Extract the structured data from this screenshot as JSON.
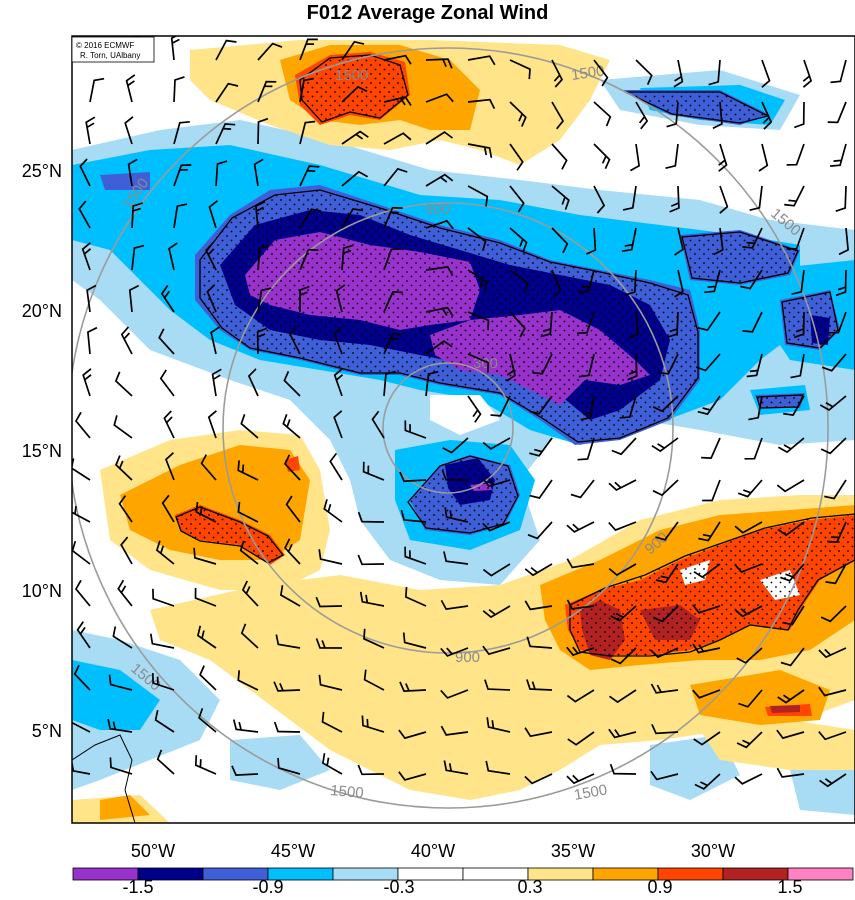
{
  "title": "F012 Average Zonal Wind",
  "credit": [
    "© 2016 ECMWF",
    "R. Torn, UAlbany"
  ],
  "map": {
    "lat_labels": [
      "25°N",
      "20°N",
      "15°N",
      "10°N",
      "5°N"
    ],
    "lon_labels": [
      "50°W",
      "45°W",
      "40°W",
      "35°W",
      "30°W"
    ],
    "range_ring_labels": [
      "300",
      "900",
      "900",
      "900",
      "1500",
      "1500",
      "1500",
      "1500",
      "1500",
      "1500",
      "1500"
    ]
  },
  "colorbar": {
    "colors": [
      "#9932cc",
      "#00008b",
      "#3f5fd8",
      "#00bfff",
      "#a8dcf5",
      "#ffffff",
      "#ffffff",
      "#ffe48a",
      "#ffa500",
      "#ff4500",
      "#b22222",
      "#ff83c2"
    ],
    "labels": [
      "-1.5",
      "-0.9",
      "-0.3",
      "0.3",
      "0.9",
      "1.5"
    ]
  }
}
